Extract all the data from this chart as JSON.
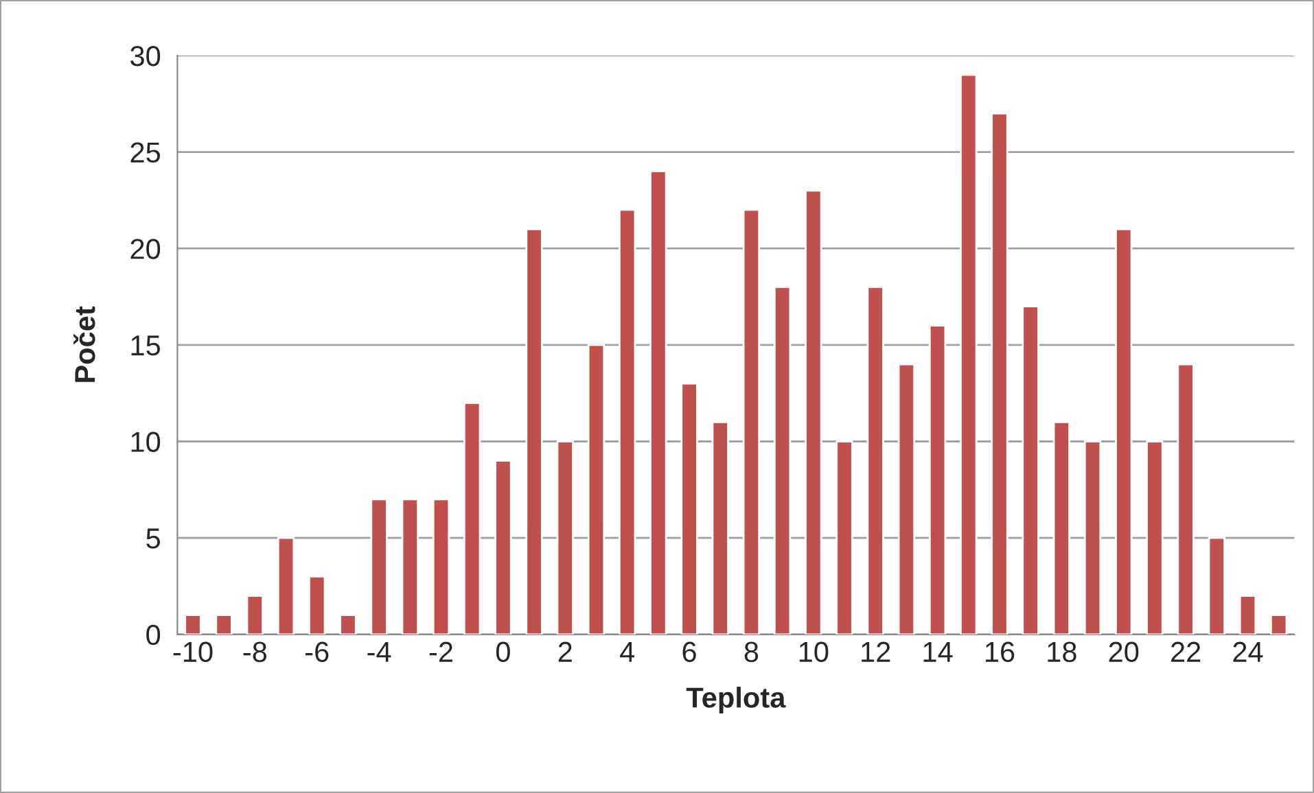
{
  "chart_data": {
    "type": "bar",
    "xlabel": "Teplota",
    "ylabel": "Počet",
    "categories": [
      "-10",
      null,
      "-8",
      null,
      "-6",
      null,
      "-4",
      null,
      "-2",
      null,
      "0",
      null,
      "2",
      null,
      "4",
      null,
      "6",
      null,
      "8",
      null,
      "10",
      null,
      "12",
      null,
      "14",
      null,
      "16",
      null,
      "18",
      null,
      "20",
      null,
      "22",
      null,
      "24",
      null
    ],
    "values": [
      1,
      1,
      2,
      5,
      3,
      1,
      7,
      7,
      7,
      12,
      9,
      21,
      10,
      15,
      22,
      24,
      13,
      11,
      22,
      18,
      23,
      10,
      18,
      14,
      16,
      29,
      27,
      17,
      11,
      10,
      21,
      10,
      14,
      5,
      2,
      1
    ],
    "color": "#c0504d",
    "ylim": [
      0,
      30
    ],
    "yticks": [
      0,
      5,
      10,
      15,
      20,
      25,
      30
    ],
    "grid": "y",
    "legend": false
  }
}
